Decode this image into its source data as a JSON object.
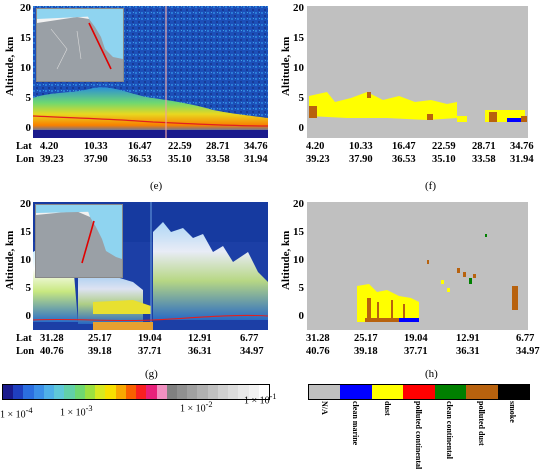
{
  "panels": {
    "e": {
      "caption": "(e)",
      "y_label": "Altitude, km",
      "y_ticks": [
        "20",
        "15",
        "10",
        "5",
        "0"
      ],
      "lat_label": "Lat",
      "lon_label": "Lon",
      "lat": [
        "4.20",
        "10.33",
        "16.47",
        "22.59",
        "28.71",
        "34.76"
      ],
      "lon": [
        "39.23",
        "37.90",
        "36.53",
        "35.10",
        "33.58",
        "31.94"
      ]
    },
    "f": {
      "caption": "(f)",
      "y_label": "Altitude, km",
      "y_ticks": [
        "20",
        "15",
        "10",
        "5",
        "0"
      ],
      "lat": [
        "4.20",
        "10.33",
        "16.47",
        "22.59",
        "28.71",
        "34.76"
      ],
      "lon": [
        "39.23",
        "37.90",
        "36.53",
        "35.10",
        "33.58",
        "31.94"
      ]
    },
    "g": {
      "caption": "(g)",
      "y_label": "Altitude, km",
      "y_ticks": [
        "20",
        "15",
        "10",
        "5",
        "0"
      ],
      "lat_label": "Lat",
      "lon_label": "Lon",
      "lat": [
        "31.28",
        "25.17",
        "19.04",
        "12.91",
        "6.77"
      ],
      "lon": [
        "40.76",
        "39.18",
        "37.71",
        "36.31",
        "34.97"
      ]
    },
    "h": {
      "caption": "(h)",
      "y_label": "Altitude, km",
      "y_ticks": [
        "20",
        "15",
        "10",
        "5",
        "0"
      ],
      "lat": [
        "31.28",
        "25.17",
        "19.04",
        "12.91",
        "6.77"
      ],
      "lon": [
        "40.76",
        "39.18",
        "37.71",
        "36.31",
        "34.97"
      ]
    }
  },
  "backscatter_colorbar": {
    "colors": [
      "#1a1a8c",
      "#1f3fbf",
      "#2b6ee0",
      "#3b8fe8",
      "#4fb0e8",
      "#5fc8d8",
      "#62d0a8",
      "#6fd870",
      "#9ce040",
      "#d8e820",
      "#f8e000",
      "#f8a800",
      "#f86000",
      "#f82020",
      "#e8207a",
      "#f090c0",
      "#808080",
      "#909090",
      "#a0a0a0",
      "#b0b0b0",
      "#c0c0c0",
      "#d0d0d0",
      "#dcdcdc",
      "#e8e8e8",
      "#f2f2f2",
      "#ffffff"
    ],
    "labels": [
      "1 × 10",
      "1 × 10",
      "1 × 10",
      "1 × 10"
    ],
    "exponents": [
      "-4",
      "-3",
      "-2",
      "-1"
    ]
  },
  "aerosol_types": {
    "colors": [
      "#c0c0c0",
      "#0000ff",
      "#ffff00",
      "#ff0000",
      "#008000",
      "#b8620e",
      "#000000"
    ],
    "labels": [
      "N/A",
      "clean marine",
      "dust",
      "polluted continental",
      "clean continental",
      "polluted dust",
      "smoke"
    ]
  }
}
